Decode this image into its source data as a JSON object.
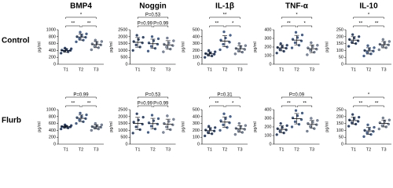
{
  "row_labels": [
    "Control",
    "Flurb"
  ],
  "chart_data": [
    {
      "type": "dot",
      "title": "BMP4",
      "ylabel": "pg/ml",
      "categories": [
        "T1",
        "T2",
        "T3"
      ],
      "ylim": [
        0,
        1000
      ],
      "yticks": [
        0,
        200,
        400,
        600,
        800,
        1000
      ],
      "groups": [
        {
          "color": "#2e4a7d",
          "values": [
            320,
            360,
            380,
            400,
            410,
            430,
            450,
            470
          ],
          "mean": 400,
          "sd": 50
        },
        {
          "color": "#3f67a8",
          "values": [
            650,
            700,
            740,
            780,
            800,
            830,
            880,
            930
          ],
          "mean": 790,
          "sd": 90
        },
        {
          "color": "#7f8fa8",
          "values": [
            420,
            480,
            520,
            560,
            590,
            620,
            660,
            700
          ],
          "mean": 570,
          "sd": 90
        }
      ],
      "comparisons": [
        "**",
        "**",
        "*"
      ]
    },
    {
      "type": "dot",
      "title": "Noggin",
      "ylabel": "pg/ml",
      "categories": [
        "T1",
        "T2",
        "T3"
      ],
      "ylim": [
        0,
        2500
      ],
      "yticks": [
        0,
        500,
        1000,
        1500,
        2000,
        2500
      ],
      "groups": [
        {
          "color": "#2e4a7d",
          "values": [
            1000,
            1250,
            1400,
            1550,
            1650,
            1800,
            1950,
            2100
          ],
          "mean": 1590,
          "sd": 350
        },
        {
          "color": "#3f67a8",
          "values": [
            950,
            1150,
            1300,
            1450,
            1550,
            1700,
            1850,
            2000
          ],
          "mean": 1490,
          "sd": 330
        },
        {
          "color": "#7f8fa8",
          "values": [
            900,
            1100,
            1250,
            1350,
            1450,
            1550,
            1700,
            1900
          ],
          "mean": 1400,
          "sd": 310
        }
      ],
      "comparisons": [
        "P=0.99",
        "P=0.99",
        "P=0.53"
      ]
    },
    {
      "type": "dot",
      "title": "IL-1β",
      "ylabel": "pg/ml",
      "categories": [
        "T1",
        "T2",
        "T3"
      ],
      "ylim": [
        0,
        500
      ],
      "yticks": [
        0,
        100,
        200,
        300,
        400,
        500
      ],
      "groups": [
        {
          "color": "#2e4a7d",
          "values": [
            100,
            120,
            135,
            145,
            155,
            165,
            180,
            200
          ],
          "mean": 150,
          "sd": 30
        },
        {
          "color": "#3f67a8",
          "values": [
            210,
            250,
            290,
            320,
            350,
            380,
            420,
            470
          ],
          "mean": 335,
          "sd": 80
        },
        {
          "color": "#7f8fa8",
          "values": [
            150,
            175,
            195,
            215,
            230,
            250,
            270,
            300
          ],
          "mean": 225,
          "sd": 45
        }
      ],
      "comparisons": [
        "**",
        "*",
        "**"
      ]
    },
    {
      "type": "dot",
      "title": "TNF-α",
      "ylabel": "pg/ml",
      "categories": [
        "T1",
        "T2",
        "T3"
      ],
      "ylim": [
        0,
        400
      ],
      "yticks": [
        0,
        100,
        200,
        300,
        400
      ],
      "groups": [
        {
          "color": "#2e4a7d",
          "values": [
            130,
            150,
            170,
            185,
            195,
            205,
            220,
            240
          ],
          "mean": 190,
          "sd": 35
        },
        {
          "color": "#3f67a8",
          "values": [
            190,
            220,
            250,
            270,
            290,
            310,
            340,
            370
          ],
          "mean": 280,
          "sd": 55
        },
        {
          "color": "#7f8fa8",
          "values": [
            110,
            140,
            160,
            175,
            190,
            205,
            220,
            250
          ],
          "mean": 180,
          "sd": 45
        }
      ],
      "comparisons": [
        "**",
        "*",
        "*"
      ]
    },
    {
      "type": "dot",
      "title": "IL-10",
      "ylabel": "pg/ml",
      "categories": [
        "T1",
        "T2",
        "T3"
      ],
      "ylim": [
        0,
        250
      ],
      "yticks": [
        0,
        50,
        100,
        150,
        200,
        250
      ],
      "groups": [
        {
          "color": "#2e4a7d",
          "values": [
            130,
            150,
            160,
            170,
            180,
            190,
            200,
            215
          ],
          "mean": 175,
          "sd": 25
        },
        {
          "color": "#3f67a8",
          "values": [
            60,
            75,
            85,
            95,
            100,
            110,
            120,
            135
          ],
          "mean": 97,
          "sd": 23
        },
        {
          "color": "#7f8fa8",
          "values": [
            105,
            120,
            130,
            140,
            145,
            155,
            165,
            180
          ],
          "mean": 142,
          "sd": 23
        }
      ],
      "comparisons": [
        "**",
        "**",
        "*"
      ]
    },
    {
      "type": "dot",
      "ylabel": "pg/ml",
      "categories": [
        "T1",
        "T2",
        "T3"
      ],
      "ylim": [
        0,
        1000
      ],
      "yticks": [
        0,
        200,
        400,
        600,
        800,
        1000
      ],
      "groups": [
        {
          "color": "#2e4a7d",
          "values": [
            440,
            470,
            490,
            500,
            510,
            520,
            540,
            560
          ],
          "mean": 505,
          "sd": 35
        },
        {
          "color": "#3f67a8",
          "values": [
            600,
            650,
            700,
            740,
            770,
            800,
            850,
            900
          ],
          "mean": 750,
          "sd": 95
        },
        {
          "color": "#7f8fa8",
          "values": [
            400,
            440,
            470,
            490,
            510,
            530,
            560,
            600
          ],
          "mean": 500,
          "sd": 60
        }
      ],
      "comparisons": [
        "**",
        "**",
        "P=0.99"
      ]
    },
    {
      "type": "dot",
      "ylabel": "pg/ml",
      "categories": [
        "T1",
        "T2",
        "T3"
      ],
      "ylim": [
        0,
        2500
      ],
      "yticks": [
        0,
        500,
        1000,
        1500,
        2000,
        2500
      ],
      "groups": [
        {
          "color": "#2e4a7d",
          "values": [
            800,
            1050,
            1250,
            1450,
            1600,
            1750,
            1950,
            2200
          ],
          "mean": 1500,
          "sd": 440
        },
        {
          "color": "#3f67a8",
          "values": [
            850,
            1100,
            1300,
            1450,
            1550,
            1700,
            1850,
            2100
          ],
          "mean": 1490,
          "sd": 380
        },
        {
          "color": "#7f8fa8",
          "values": [
            850,
            1050,
            1250,
            1400,
            1500,
            1650,
            1800,
            2050
          ],
          "mean": 1440,
          "sd": 370
        }
      ],
      "comparisons": [
        "P=0.99",
        "P=0.99",
        "P=0.53"
      ]
    },
    {
      "type": "dot",
      "ylabel": "pg/ml",
      "categories": [
        "T1",
        "T2",
        "T3"
      ],
      "ylim": [
        0,
        500
      ],
      "yticks": [
        0,
        100,
        200,
        300,
        400,
        500
      ],
      "groups": [
        {
          "color": "#2e4a7d",
          "values": [
            120,
            150,
            170,
            190,
            205,
            220,
            240,
            260
          ],
          "mean": 195,
          "sd": 45
        },
        {
          "color": "#3f67a8",
          "values": [
            200,
            240,
            280,
            310,
            340,
            370,
            400,
            440
          ],
          "mean": 320,
          "sd": 75
        },
        {
          "color": "#7f8fa8",
          "values": [
            140,
            170,
            195,
            215,
            230,
            250,
            270,
            300
          ],
          "mean": 220,
          "sd": 48
        }
      ],
      "comparisons": [
        "**",
        "*",
        "P=0.31"
      ]
    },
    {
      "type": "dot",
      "ylabel": "pg/ml",
      "categories": [
        "T1",
        "T2",
        "T3"
      ],
      "ylim": [
        0,
        400
      ],
      "yticks": [
        0,
        100,
        200,
        300,
        400
      ],
      "groups": [
        {
          "color": "#2e4a7d",
          "values": [
            110,
            130,
            150,
            165,
            180,
            195,
            215,
            240
          ],
          "mean": 172,
          "sd": 40
        },
        {
          "color": "#3f67a8",
          "values": [
            200,
            230,
            260,
            285,
            305,
            330,
            360,
            390
          ],
          "mean": 295,
          "sd": 60
        },
        {
          "color": "#7f8fa8",
          "values": [
            150,
            180,
            205,
            225,
            240,
            255,
            275,
            300
          ],
          "mean": 229,
          "sd": 45
        }
      ],
      "comparisons": [
        "**",
        "**",
        "P=0.09"
      ]
    },
    {
      "type": "dot",
      "ylabel": "pg/ml",
      "categories": [
        "T1",
        "T2",
        "T3"
      ],
      "ylim": [
        0,
        250
      ],
      "yticks": [
        0,
        50,
        100,
        150,
        200,
        250
      ],
      "groups": [
        {
          "color": "#2e4a7d",
          "values": [
            130,
            145,
            155,
            165,
            175,
            185,
            195,
            215
          ],
          "mean": 171,
          "sd": 26
        },
        {
          "color": "#3f67a8",
          "values": [
            55,
            70,
            82,
            92,
            100,
            110,
            122,
            140
          ],
          "mean": 96,
          "sd": 26
        },
        {
          "color": "#7f8fa8",
          "values": [
            110,
            125,
            135,
            145,
            155,
            165,
            175,
            190
          ],
          "mean": 150,
          "sd": 25
        }
      ],
      "comparisons": [
        "**",
        "**",
        "*"
      ]
    }
  ]
}
